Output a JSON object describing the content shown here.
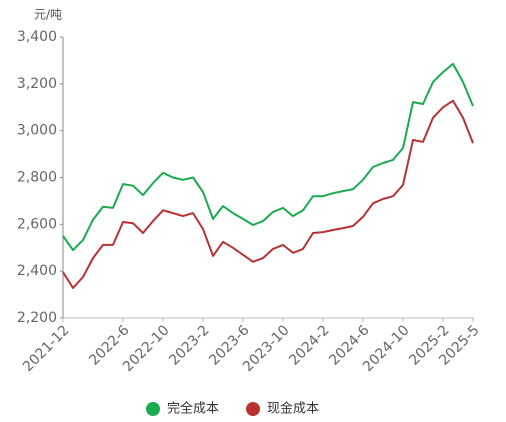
{
  "chart_data": {
    "type": "line",
    "y_unit": "元/吨",
    "categories": [
      "2021-12",
      null,
      null,
      null,
      null,
      null,
      "2022-6",
      null,
      null,
      null,
      "2022-10",
      null,
      null,
      null,
      "2023-2",
      null,
      null,
      null,
      "2023-6",
      null,
      null,
      null,
      "2023-10",
      null,
      null,
      null,
      "2024-2",
      null,
      null,
      null,
      "2024-6",
      null,
      null,
      null,
      "2024-10",
      null,
      null,
      null,
      "2025-2",
      null,
      null,
      "2025-5"
    ],
    "series": [
      {
        "name": "完全成本",
        "color": "#1aab4f",
        "values": [
          2550,
          2490,
          2533,
          2620,
          2675,
          2670,
          2772,
          2765,
          2725,
          2776,
          2820,
          2800,
          2790,
          2800,
          2738,
          2623,
          2678,
          2648,
          2623,
          2597,
          2614,
          2653,
          2670,
          2635,
          2660,
          2720,
          2720,
          2733,
          2742,
          2750,
          2790,
          2845,
          2862,
          2875,
          2926,
          3122,
          3114,
          3208,
          3250,
          3285,
          3208,
          3105
        ]
      },
      {
        "name": "现金成本",
        "color": "#b83232",
        "values": [
          2396,
          2328,
          2375,
          2456,
          2512,
          2512,
          2610,
          2605,
          2563,
          2614,
          2660,
          2648,
          2635,
          2648,
          2580,
          2465,
          2525,
          2500,
          2470,
          2440,
          2456,
          2495,
          2512,
          2478,
          2495,
          2563,
          2567,
          2576,
          2584,
          2593,
          2632,
          2690,
          2708,
          2720,
          2768,
          2960,
          2952,
          3055,
          3100,
          3128,
          3055,
          2947
        ]
      }
    ],
    "ylim": [
      2200,
      3400
    ],
    "yticks": [
      {
        "value": 2200,
        "label": "2,200"
      },
      {
        "value": 2400,
        "label": "2,400"
      },
      {
        "value": 2600,
        "label": "2,600"
      },
      {
        "value": 2800,
        "label": "2,800"
      },
      {
        "value": 3000,
        "label": "3,000"
      },
      {
        "value": 3200,
        "label": "3,200"
      },
      {
        "value": 3400,
        "label": "3,400"
      }
    ],
    "grid": false,
    "legend": "bottom"
  }
}
